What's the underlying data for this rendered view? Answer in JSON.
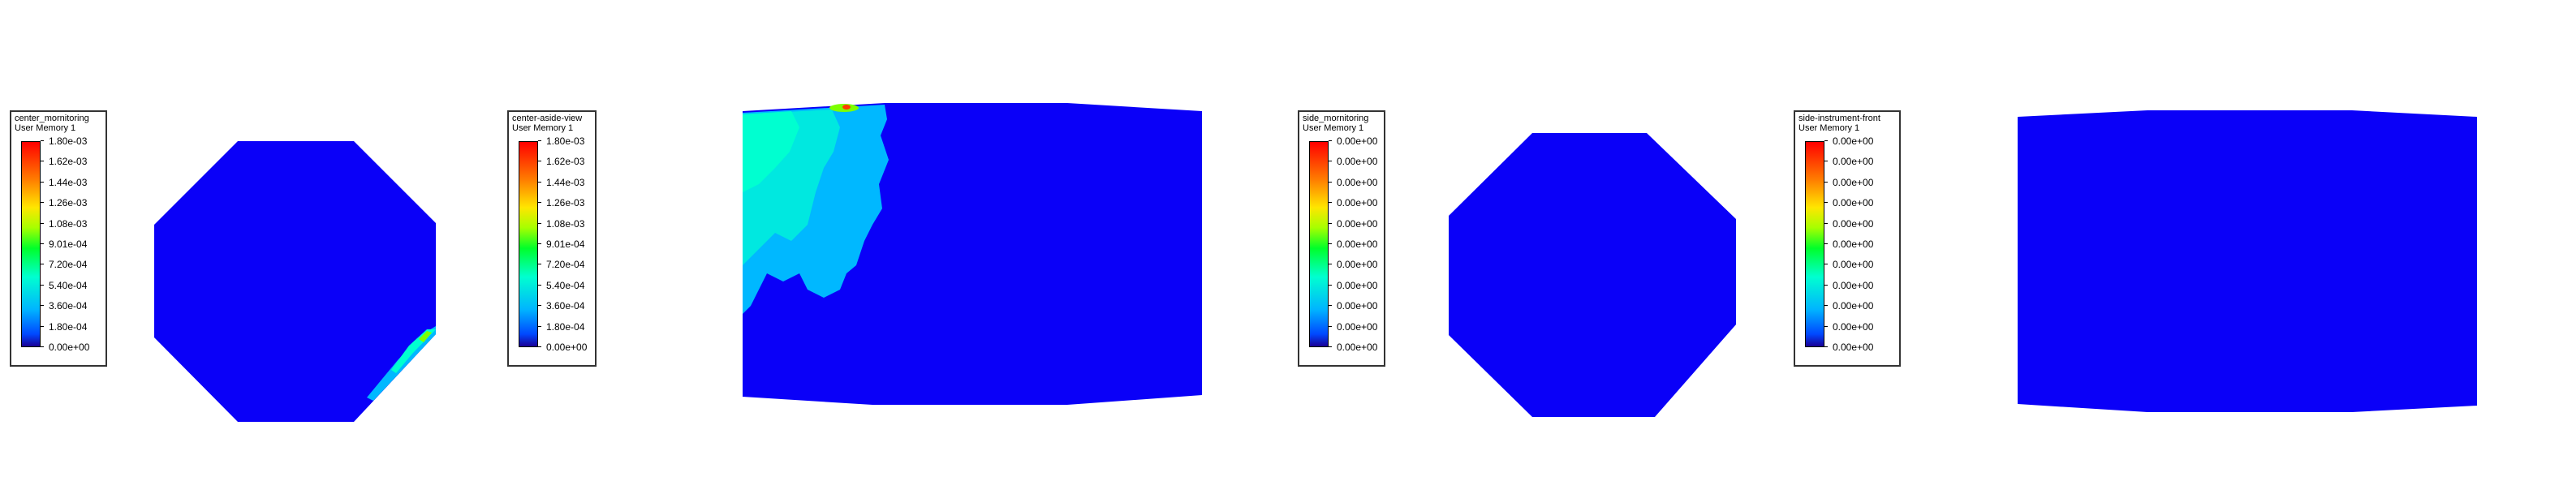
{
  "panels": [
    {
      "legend": {
        "title": "center_mornitoring",
        "subtitle": "User Memory 1",
        "ticks": [
          "1.80e-03",
          "1.62e-03",
          "1.44e-03",
          "1.26e-03",
          "1.08e-03",
          "9.01e-04",
          "7.20e-04",
          "5.40e-04",
          "3.60e-04",
          "1.80e-04",
          "0.00e+00"
        ]
      }
    },
    {
      "legend": {
        "title": "center-aside-view",
        "subtitle": "User Memory 1",
        "ticks": [
          "1.80e-03",
          "1.62e-03",
          "1.44e-03",
          "1.26e-03",
          "1.08e-03",
          "9.01e-04",
          "7.20e-04",
          "5.40e-04",
          "3.60e-04",
          "1.80e-04",
          "0.00e+00"
        ]
      }
    },
    {
      "legend": {
        "title": "side_mornitoring",
        "subtitle": "User Memory 1",
        "ticks": [
          "0.00e+00",
          "0.00e+00",
          "0.00e+00",
          "0.00e+00",
          "0.00e+00",
          "0.00e+00",
          "0.00e+00",
          "0.00e+00",
          "0.00e+00",
          "0.00e+00",
          "0.00e+00"
        ]
      }
    },
    {
      "legend": {
        "title": "side-instrument-front",
        "subtitle": "User Memory 1",
        "ticks": [
          "0.00e+00",
          "0.00e+00",
          "0.00e+00",
          "0.00e+00",
          "0.00e+00",
          "0.00e+00",
          "0.00e+00",
          "0.00e+00",
          "0.00e+00",
          "0.00e+00",
          "0.00e+00"
        ]
      }
    }
  ],
  "colors": {
    "field_base": "#0a00f8",
    "hot_low": "#00b8ff",
    "hot_mid": "#00ffd0",
    "hot_high": "#7dff00",
    "legend_border": "#333333"
  }
}
